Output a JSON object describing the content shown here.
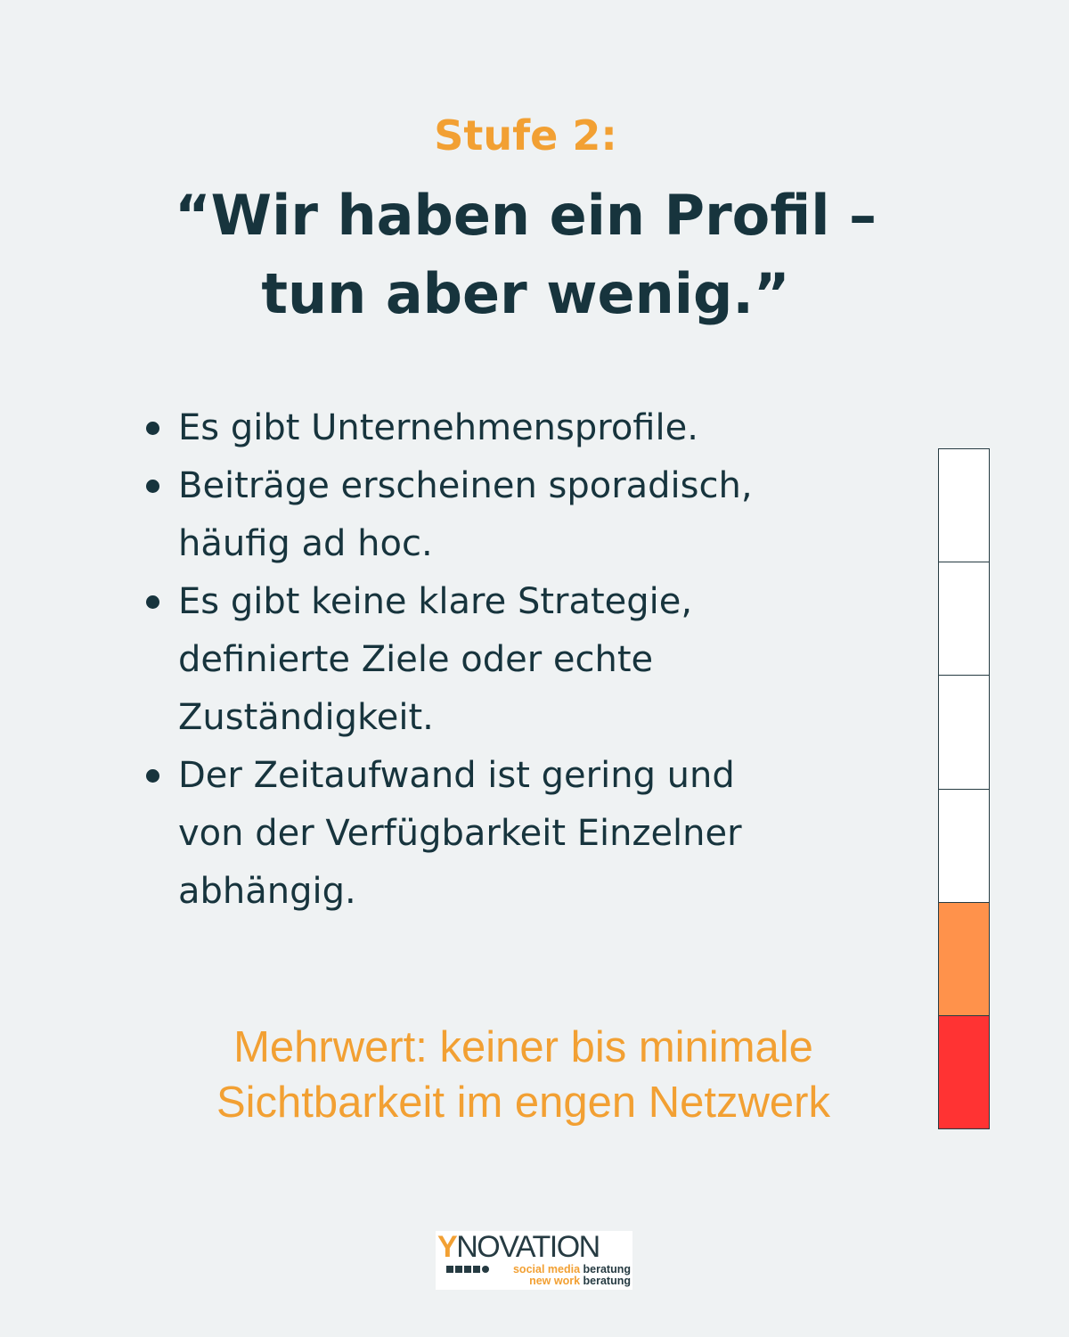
{
  "stage": {
    "label": "Stufe 2:"
  },
  "headline": {
    "lines": [
      "“Wir haben ein Profil –",
      "tun aber wenig.”"
    ]
  },
  "bullets": [
    {
      "lines": [
        "Es gibt Unternehmensprofile."
      ]
    },
    {
      "lines": [
        "Beiträge erscheinen sporadisch,",
        "häufig ad hoc."
      ]
    },
    {
      "lines": [
        "Es gibt keine klare Strategie,",
        "definierte Ziele oder echte",
        "Zuständigkeit."
      ]
    },
    {
      "lines": [
        "Der Zeitaufwand ist gering und",
        "von der Verfügbarkeit Einzelner",
        "abhängig."
      ]
    }
  ],
  "value_note": {
    "lines": [
      "Mehrwert: keiner bis minimale",
      "Sichtbarkeit im engen Netzwerk"
    ]
  },
  "level_meter": {
    "total_segments": 6,
    "filled_segments": 2,
    "segment_colors": [
      "#ffffff",
      "#ffffff",
      "#ffffff",
      "#ffffff",
      "#ff924b",
      "#ff3333"
    ]
  },
  "logo": {
    "brand_initial": "Y",
    "brand_rest": "NOVATION",
    "tagline_1_highlight": "social media",
    "tagline_1_rest": "beratung",
    "tagline_2_highlight": "new work",
    "tagline_2_rest": "beratung"
  },
  "colors": {
    "background": "#eff2f3",
    "accent": "#f2a033",
    "text_dark": "#17343d"
  }
}
